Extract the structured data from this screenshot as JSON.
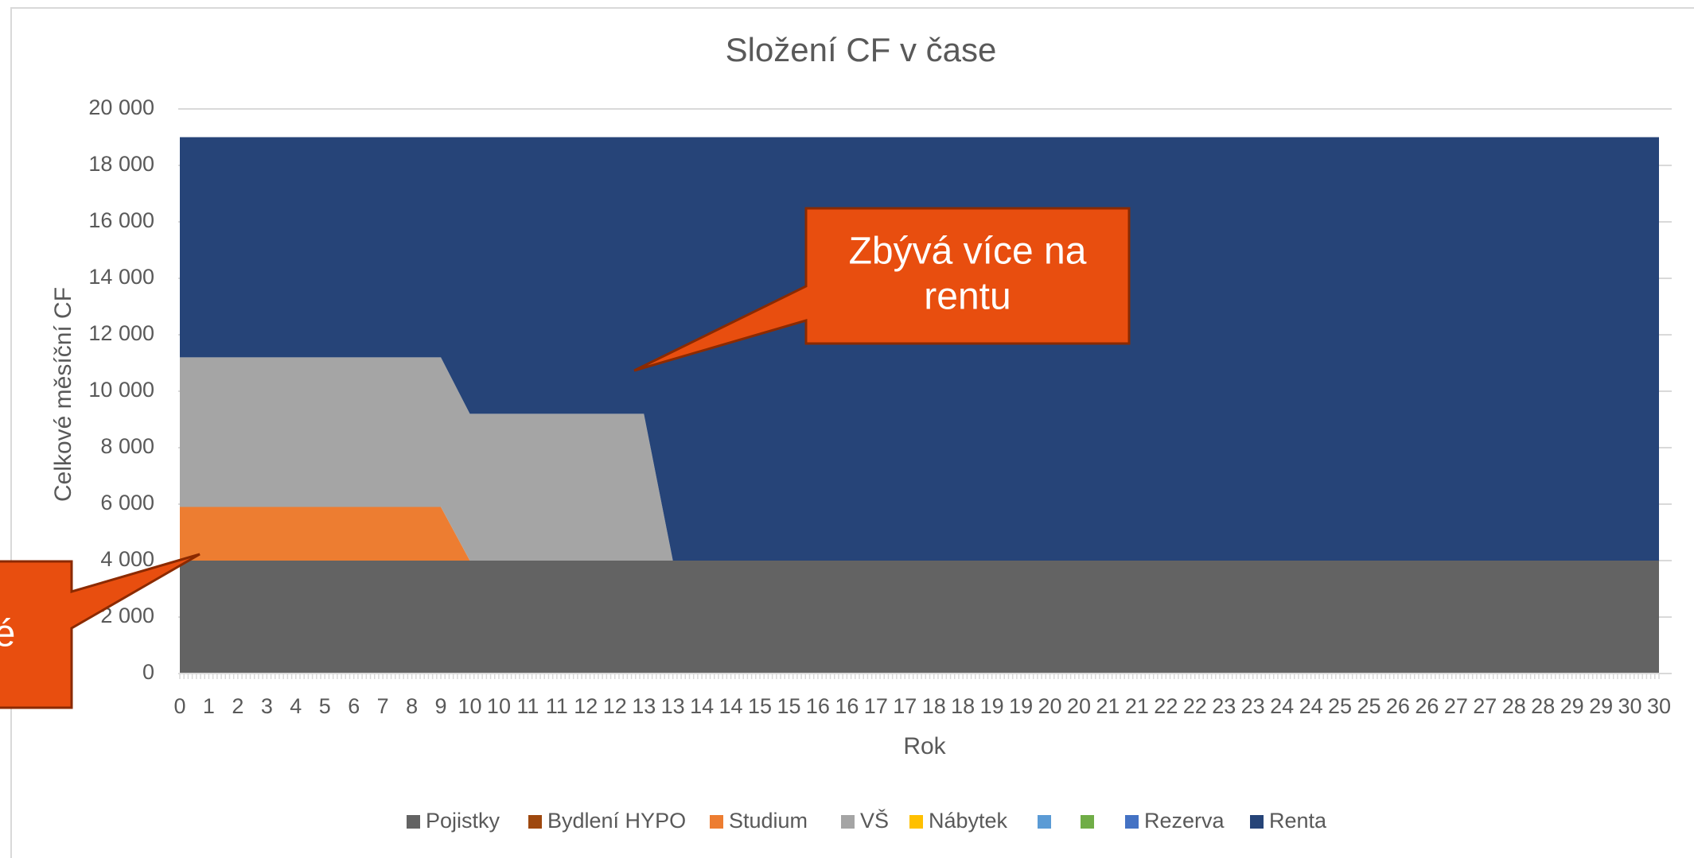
{
  "chart_data": {
    "type": "stacked_area",
    "title": "Složení CF v čase",
    "x_label": "Rok",
    "y_label": "Celkové měsíční CF",
    "categories": [
      "0",
      "1",
      "2",
      "3",
      "4",
      "5",
      "6",
      "7",
      "8",
      "9",
      "10",
      "10",
      "11",
      "11",
      "12",
      "12",
      "13",
      "13",
      "14",
      "14",
      "15",
      "15",
      "16",
      "16",
      "17",
      "17",
      "18",
      "18",
      "19",
      "19",
      "20",
      "20",
      "21",
      "21",
      "22",
      "22",
      "23",
      "23",
      "24",
      "24",
      "25",
      "25",
      "26",
      "26",
      "27",
      "27",
      "28",
      "28",
      "29",
      "29",
      "30",
      "30"
    ],
    "ylim": [
      0,
      20000
    ],
    "yticks": [
      0,
      {
        "value": 2000,
        "label": "2 000"
      },
      {
        "value": 4000,
        "label": "4 000"
      },
      {
        "value": 6000,
        "label": "6 000"
      },
      {
        "value": 8000,
        "label": "8 000"
      },
      {
        "value": 10000,
        "label": "10 000"
      },
      {
        "value": 12000,
        "label": "12 000"
      },
      {
        "value": 14000,
        "label": "14 000"
      },
      {
        "value": 16000,
        "label": "16 000"
      },
      {
        "value": 18000,
        "label": "18 000"
      },
      {
        "value": 20000,
        "label": "20 000"
      }
    ],
    "grid": true,
    "legend": "bottom",
    "series": [
      {
        "name": "Pojistky",
        "color": "#636363",
        "values": [
          4000,
          4000,
          4000,
          4000,
          4000,
          4000,
          4000,
          4000,
          4000,
          4000,
          4000,
          4000,
          4000,
          4000,
          4000,
          4000,
          4000,
          4000,
          4000,
          4000,
          4000,
          4000,
          4000,
          4000,
          4000,
          4000,
          4000,
          4000,
          4000,
          4000,
          4000,
          4000,
          4000,
          4000,
          4000,
          4000,
          4000,
          4000,
          4000,
          4000,
          4000,
          4000,
          4000,
          4000,
          4000,
          4000,
          4000,
          4000,
          4000,
          4000,
          4000,
          4000
        ]
      },
      {
        "name": "Bydlení HYPO",
        "color": "#9e480e",
        "values": [
          0,
          0,
          0,
          0,
          0,
          0,
          0,
          0,
          0,
          0,
          0,
          0,
          0,
          0,
          0,
          0,
          0,
          0,
          0,
          0,
          0,
          0,
          0,
          0,
          0,
          0,
          0,
          0,
          0,
          0,
          0,
          0,
          0,
          0,
          0,
          0,
          0,
          0,
          0,
          0,
          0,
          0,
          0,
          0,
          0,
          0,
          0,
          0,
          0,
          0,
          0,
          0
        ]
      },
      {
        "name": "Studium",
        "color": "#ed7d31",
        "values": [
          1900,
          1900,
          1900,
          1900,
          1900,
          1900,
          1900,
          1900,
          1900,
          1900,
          0,
          0,
          0,
          0,
          0,
          0,
          0,
          0,
          0,
          0,
          0,
          0,
          0,
          0,
          0,
          0,
          0,
          0,
          0,
          0,
          0,
          0,
          0,
          0,
          0,
          0,
          0,
          0,
          0,
          0,
          0,
          0,
          0,
          0,
          0,
          0,
          0,
          0,
          0,
          0,
          0,
          0
        ]
      },
      {
        "name": "VŠ",
        "color": "#a5a5a5",
        "values": [
          5300,
          5300,
          5300,
          5300,
          5300,
          5300,
          5300,
          5300,
          5300,
          5300,
          5200,
          5200,
          5200,
          5200,
          5200,
          5200,
          5200,
          0,
          0,
          0,
          0,
          0,
          0,
          0,
          0,
          0,
          0,
          0,
          0,
          0,
          0,
          0,
          0,
          0,
          0,
          0,
          0,
          0,
          0,
          0,
          0,
          0,
          0,
          0,
          0,
          0,
          0,
          0,
          0,
          0,
          0,
          0
        ]
      },
      {
        "name": "Nábytek",
        "color": "#ffc000",
        "values": [
          0,
          0,
          0,
          0,
          0,
          0,
          0,
          0,
          0,
          0,
          0,
          0,
          0,
          0,
          0,
          0,
          0,
          0,
          0,
          0,
          0,
          0,
          0,
          0,
          0,
          0,
          0,
          0,
          0,
          0,
          0,
          0,
          0,
          0,
          0,
          0,
          0,
          0,
          0,
          0,
          0,
          0,
          0,
          0,
          0,
          0,
          0,
          0,
          0,
          0,
          0,
          0
        ]
      },
      {
        "color": "#5b9bd5",
        "values": [
          0,
          0,
          0,
          0,
          0,
          0,
          0,
          0,
          0,
          0,
          0,
          0,
          0,
          0,
          0,
          0,
          0,
          0,
          0,
          0,
          0,
          0,
          0,
          0,
          0,
          0,
          0,
          0,
          0,
          0,
          0,
          0,
          0,
          0,
          0,
          0,
          0,
          0,
          0,
          0,
          0,
          0,
          0,
          0,
          0,
          0,
          0,
          0,
          0,
          0,
          0,
          0
        ]
      },
      {
        "color": "#70ad47",
        "values": [
          0,
          0,
          0,
          0,
          0,
          0,
          0,
          0,
          0,
          0,
          0,
          0,
          0,
          0,
          0,
          0,
          0,
          0,
          0,
          0,
          0,
          0,
          0,
          0,
          0,
          0,
          0,
          0,
          0,
          0,
          0,
          0,
          0,
          0,
          0,
          0,
          0,
          0,
          0,
          0,
          0,
          0,
          0,
          0,
          0,
          0,
          0,
          0,
          0,
          0,
          0,
          0
        ]
      },
      {
        "name": "Rezerva",
        "color": "#4472c4",
        "values": [
          0,
          0,
          0,
          0,
          0,
          0,
          0,
          0,
          0,
          0,
          0,
          0,
          0,
          0,
          0,
          0,
          0,
          0,
          0,
          0,
          0,
          0,
          0,
          0,
          0,
          0,
          0,
          0,
          0,
          0,
          0,
          0,
          0,
          0,
          0,
          0,
          0,
          0,
          0,
          0,
          0,
          0,
          0,
          0,
          0,
          0,
          0,
          0,
          0,
          0,
          0,
          0
        ]
      },
      {
        "name": "Renta",
        "color": "#264478",
        "values": [
          7800,
          7800,
          7800,
          7800,
          7800,
          7800,
          7800,
          7800,
          7800,
          7800,
          9800,
          9800,
          9800,
          9800,
          9800,
          9800,
          9800,
          15000,
          15000,
          15000,
          15000,
          15000,
          15000,
          15000,
          15000,
          15000,
          15000,
          15000,
          15000,
          15000,
          15000,
          15000,
          15000,
          15000,
          15000,
          15000,
          15000,
          15000,
          15000,
          15000,
          15000,
          15000,
          15000,
          15000,
          15000,
          15000,
          15000,
          15000,
          15000,
          15000,
          15000,
          15000
        ]
      }
    ],
    "annotations": [
      {
        "text": [
          "Zbývá více na",
          "rentu"
        ]
      },
      {
        "text": [
          "é"
        ]
      }
    ]
  }
}
